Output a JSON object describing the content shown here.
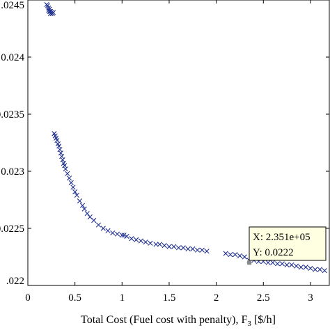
{
  "chart_data": {
    "type": "scatter",
    "title": "",
    "xlabel": "Total Cost (Fuel cost with penalty), F",
    "xlabel_sub": "3",
    "xlabel_unit": " [$/h]",
    "ylabel": "",
    "xlim": [
      0,
      3.2
    ],
    "ylim": [
      0.022,
      0.0245
    ],
    "x_ticks": [
      0,
      0.5,
      1,
      1.5,
      2,
      2.5,
      3
    ],
    "x_tick_labels": [
      "0",
      "0.5",
      "1",
      "1.5",
      "2",
      "2.5",
      "3"
    ],
    "y_ticks": [
      0.022,
      0.0225,
      0.023,
      0.0235,
      0.024,
      0.0245
    ],
    "y_tick_labels": [
      ".022",
      "0.0225",
      "0.023",
      "0.0235",
      "0.024",
      ".0245"
    ],
    "grid": false,
    "marker": "x",
    "marker_color": "#1f2f8f",
    "series": [
      {
        "x": [
          0.2,
          0.21,
          0.22,
          0.23,
          0.24,
          0.25,
          0.26,
          0.27,
          0.22,
          0.23,
          0.24,
          0.25,
          0.28,
          0.29,
          0.3,
          0.31,
          0.32,
          0.33,
          0.34,
          0.35,
          0.36,
          0.37,
          0.38,
          0.39,
          0.4,
          0.42,
          0.44,
          0.46,
          0.48,
          0.5,
          0.52,
          0.55,
          0.58,
          0.6,
          0.63,
          0.66,
          0.7,
          0.75,
          0.8,
          0.85,
          0.9,
          0.95,
          1.0,
          1.02,
          1.05,
          1.1,
          1.15,
          1.2,
          1.25,
          1.3,
          1.36,
          1.4,
          1.45,
          1.5,
          1.55,
          1.6,
          1.65,
          1.7,
          1.75,
          1.8,
          1.85,
          1.9,
          2.1,
          2.15,
          2.2,
          2.25,
          2.3,
          2.35,
          2.4,
          2.45,
          2.5,
          2.55,
          2.6,
          2.65,
          2.7,
          2.75,
          2.8,
          2.85,
          2.9,
          2.95,
          3.0,
          3.05,
          3.1,
          3.15
        ],
        "y": [
          0.02446,
          0.02445,
          0.02443,
          0.02442,
          0.0244,
          0.02439,
          0.02438,
          0.02439,
          0.02441,
          0.0244,
          0.02438,
          0.02439,
          0.02333,
          0.02331,
          0.02329,
          0.02327,
          0.02324,
          0.02322,
          0.02319,
          0.02316,
          0.02313,
          0.0231,
          0.02307,
          0.02305,
          0.02302,
          0.02298,
          0.02294,
          0.0229,
          0.02286,
          0.02282,
          0.02279,
          0.02274,
          0.0227,
          0.02267,
          0.02263,
          0.0226,
          0.02257,
          0.02253,
          0.0225,
          0.02248,
          0.02246,
          0.02245,
          0.02244,
          0.02244,
          0.02243,
          0.02241,
          0.0224,
          0.02239,
          0.02238,
          0.02237,
          0.02236,
          0.02236,
          0.02235,
          0.02234,
          0.02234,
          0.02233,
          0.02233,
          0.02232,
          0.02232,
          0.02231,
          0.02231,
          0.0223,
          0.02228,
          0.02227,
          0.02227,
          0.02226,
          0.02225,
          0.02222,
          0.02222,
          0.02221,
          0.02221,
          0.0222,
          0.0222,
          0.02219,
          0.02219,
          0.02218,
          0.02218,
          0.02217,
          0.02216,
          0.02216,
          0.02215,
          0.02214,
          0.02214,
          0.02213
        ]
      }
    ],
    "datatip": {
      "x": 2.351,
      "y": 0.0222,
      "line1": "X: 2.351e+05",
      "line2": "Y: 0.0222"
    }
  }
}
